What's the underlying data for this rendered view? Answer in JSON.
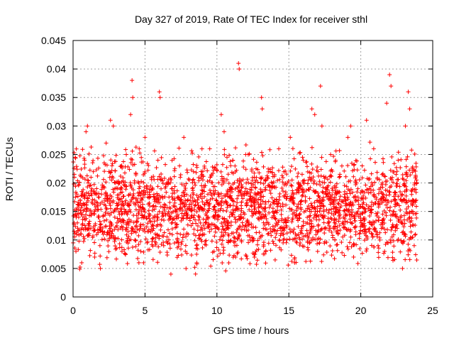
{
  "chart_data": {
    "type": "scatter",
    "title": "Day 327 of 2019, Rate Of TEC Index for receiver sthl",
    "xlabel": "GPS time / hours",
    "ylabel": "ROTI / TECUs",
    "xlim": [
      0,
      25
    ],
    "ylim": [
      0,
      0.045
    ],
    "xticks": [
      0,
      5,
      10,
      15,
      20,
      25
    ],
    "yticks": [
      0,
      0.005,
      0.01,
      0.015,
      0.02,
      0.025,
      0.03,
      0.035,
      0.04,
      0.045
    ],
    "xtick_labels": [
      "0",
      "5",
      "10",
      "15",
      "20",
      "25"
    ],
    "ytick_labels": [
      "0",
      "0.005",
      "0.01",
      "0.015",
      "0.02",
      "0.025",
      "0.03",
      "0.035",
      "0.04",
      "0.045"
    ],
    "grid": true,
    "marker": "plus",
    "marker_color": "#ff0000",
    "series": [
      {
        "name": "ROTI",
        "points": [
          [
            0.1,
            0.021
          ],
          [
            0.2,
            0.008
          ],
          [
            0.3,
            0.013
          ],
          [
            0.5,
            0.017
          ],
          [
            0.6,
            0.006
          ],
          [
            0.8,
            0.024
          ],
          [
            0.9,
            0.029
          ],
          [
            1.0,
            0.03
          ],
          [
            1.1,
            0.012
          ],
          [
            1.3,
            0.019
          ],
          [
            1.5,
            0.007
          ],
          [
            1.7,
            0.016
          ],
          [
            1.9,
            0.005
          ],
          [
            2.1,
            0.011
          ],
          [
            2.3,
            0.027
          ],
          [
            2.5,
            0.022
          ],
          [
            2.6,
            0.031
          ],
          [
            2.8,
            0.03
          ],
          [
            2.9,
            0.014
          ],
          [
            3.2,
            0.02
          ],
          [
            3.4,
            0.008
          ],
          [
            3.7,
            0.025
          ],
          [
            3.9,
            0.016
          ],
          [
            4.0,
            0.032
          ],
          [
            4.1,
            0.038
          ],
          [
            4.15,
            0.035
          ],
          [
            4.3,
            0.01
          ],
          [
            4.6,
            0.026
          ],
          [
            4.9,
            0.006
          ],
          [
            5.0,
            0.028
          ],
          [
            5.3,
            0.018
          ],
          [
            5.6,
            0.012
          ],
          [
            5.9,
            0.024
          ],
          [
            6.0,
            0.036
          ],
          [
            6.05,
            0.035
          ],
          [
            6.3,
            0.009
          ],
          [
            6.5,
            0.02
          ],
          [
            6.8,
            0.004
          ],
          [
            7.1,
            0.015
          ],
          [
            7.4,
            0.023
          ],
          [
            7.7,
            0.028
          ],
          [
            8.0,
            0.011
          ],
          [
            8.3,
            0.019
          ],
          [
            8.6,
            0.006
          ],
          [
            8.9,
            0.022
          ],
          [
            9.2,
            0.013
          ],
          [
            9.5,
            0.026
          ],
          [
            9.8,
            0.008
          ],
          [
            10.1,
            0.018
          ],
          [
            10.3,
            0.032
          ],
          [
            10.5,
            0.029
          ],
          [
            10.8,
            0.012
          ],
          [
            11.1,
            0.024
          ],
          [
            11.3,
            0.007
          ],
          [
            11.5,
            0.041
          ],
          [
            11.55,
            0.04
          ],
          [
            11.7,
            0.018
          ],
          [
            12.0,
            0.025
          ],
          [
            12.3,
            0.01
          ],
          [
            12.6,
            0.021
          ],
          [
            12.9,
            0.015
          ],
          [
            13.1,
            0.035
          ],
          [
            13.15,
            0.033
          ],
          [
            13.4,
            0.008
          ],
          [
            13.7,
            0.022
          ],
          [
            14.0,
            0.017
          ],
          [
            14.3,
            0.026
          ],
          [
            14.6,
            0.011
          ],
          [
            14.9,
            0.02
          ],
          [
            15.1,
            0.028
          ],
          [
            15.4,
            0.006
          ],
          [
            15.7,
            0.019
          ],
          [
            16.0,
            0.024
          ],
          [
            16.3,
            0.013
          ],
          [
            16.6,
            0.033
          ],
          [
            16.8,
            0.032
          ],
          [
            17.0,
            0.008
          ],
          [
            17.2,
            0.037
          ],
          [
            17.3,
            0.03
          ],
          [
            17.6,
            0.018
          ],
          [
            17.9,
            0.025
          ],
          [
            18.2,
            0.01
          ],
          [
            18.5,
            0.021
          ],
          [
            18.8,
            0.014
          ],
          [
            19.1,
            0.028
          ],
          [
            19.3,
            0.03
          ],
          [
            19.5,
            0.007
          ],
          [
            19.8,
            0.019
          ],
          [
            20.1,
            0.023
          ],
          [
            20.4,
            0.031
          ],
          [
            20.6,
            0.012
          ],
          [
            20.9,
            0.026
          ],
          [
            21.2,
            0.009
          ],
          [
            21.5,
            0.02
          ],
          [
            21.8,
            0.034
          ],
          [
            22.0,
            0.039
          ],
          [
            22.1,
            0.037
          ],
          [
            22.3,
            0.015
          ],
          [
            22.6,
            0.024
          ],
          [
            22.9,
            0.005
          ],
          [
            23.1,
            0.03
          ],
          [
            23.3,
            0.036
          ],
          [
            23.4,
            0.033
          ],
          [
            23.6,
            0.017
          ],
          [
            23.8,
            0.011
          ]
        ],
        "dense_band": {
          "x_range": [
            0,
            23.9
          ],
          "y_range": [
            0.003,
            0.025
          ],
          "description": "dense cluster of ROTI samples"
        }
      }
    ]
  }
}
